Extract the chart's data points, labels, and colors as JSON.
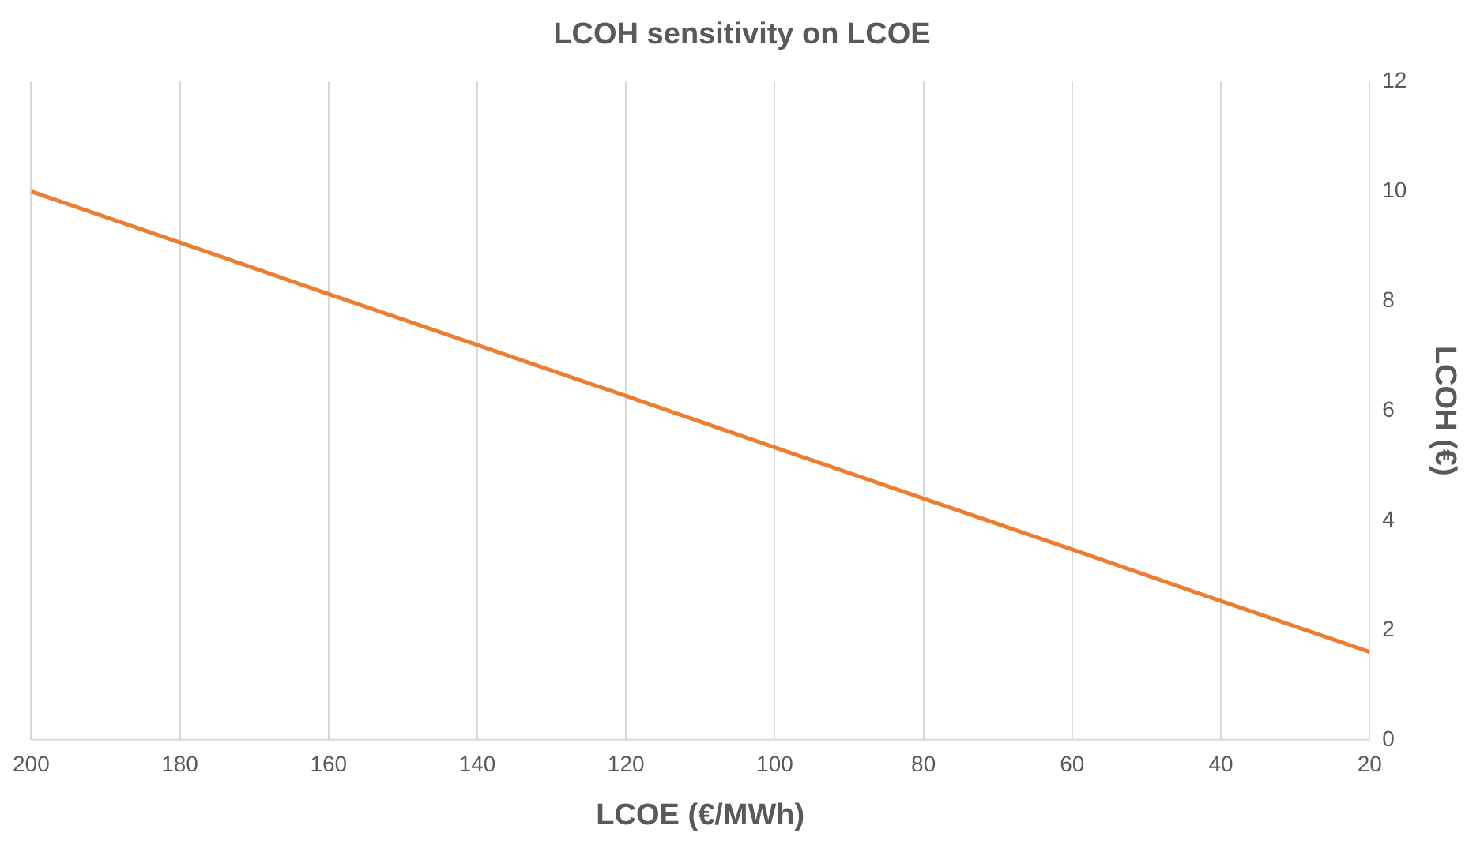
{
  "chart_data": {
    "type": "line",
    "title": "LCOH sensitivity on LCOE",
    "xlabel": "LCOE (€/MWh)",
    "ylabel": "LCOH (€)",
    "x": [
      200,
      180,
      160,
      140,
      120,
      100,
      80,
      60,
      40,
      20
    ],
    "series": [
      {
        "color": "#ed7d31",
        "values": [
          10.0,
          9.07,
          8.13,
          7.2,
          6.27,
          5.33,
          4.4,
          3.47,
          2.53,
          1.6
        ]
      }
    ],
    "xlim": [
      200,
      20
    ],
    "xticks": [
      200,
      180,
      160,
      140,
      120,
      100,
      80,
      60,
      40,
      20
    ],
    "ylim": [
      0,
      12
    ],
    "yticks": [
      0,
      2,
      4,
      6,
      8,
      10,
      12
    ],
    "grid": "x",
    "legend": false,
    "marker": "none",
    "line_style": "solid"
  }
}
